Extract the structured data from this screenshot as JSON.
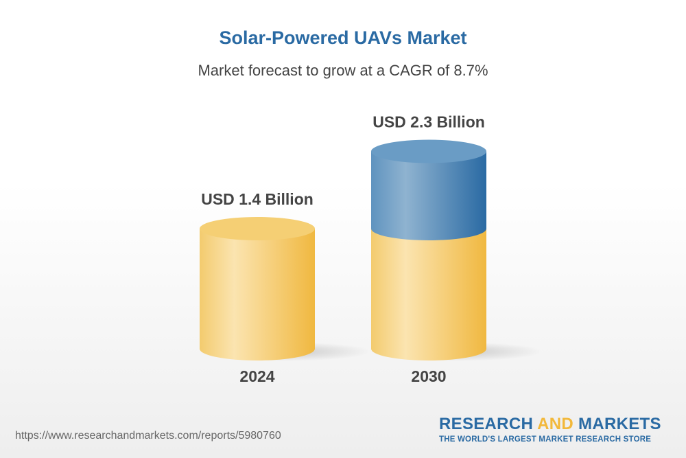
{
  "title": "Solar-Powered UAVs Market",
  "subtitle": "Market forecast to grow at a CAGR of 8.7%",
  "chart_data": {
    "type": "bar",
    "categories": [
      "2024",
      "2030"
    ],
    "values": [
      1.4,
      2.3
    ],
    "data_labels": [
      "USD 1.4 Billion",
      "USD 2.3 Billion"
    ],
    "unit": "USD Billion",
    "colors": {
      "base": "#f2c35a",
      "growth": "#3b77a8"
    }
  },
  "footer": {
    "url": "https://www.researchandmarkets.com/reports/5980760",
    "logo_part1": "RESEARCH ",
    "logo_part2": "AND",
    "logo_part3": " MARKETS",
    "tagline": "THE WORLD'S LARGEST MARKET RESEARCH STORE"
  }
}
